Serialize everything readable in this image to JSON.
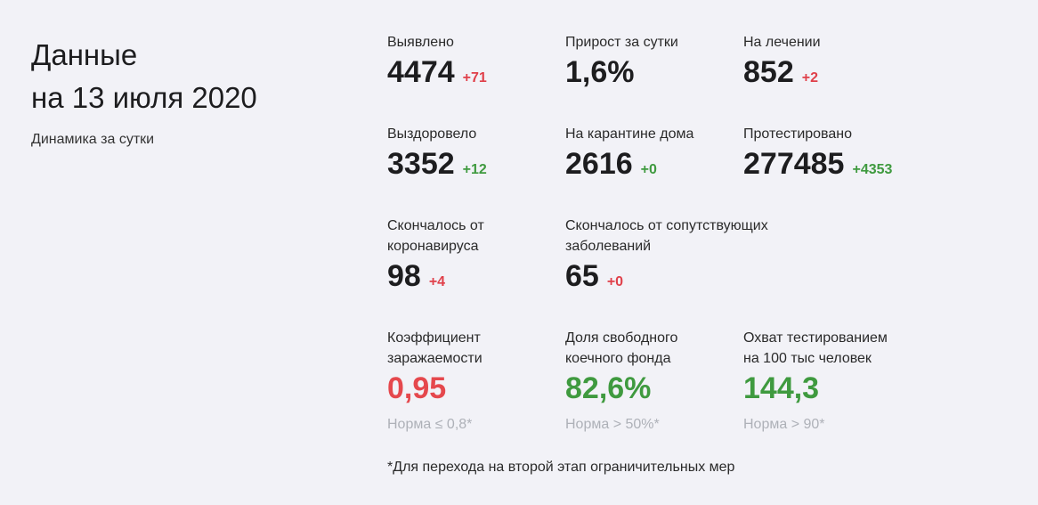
{
  "header": {
    "title_line1": "Данные",
    "title_line2": "на 13 июля 2020",
    "subtitle": "Динамика за сутки"
  },
  "stats": {
    "detected": {
      "label": "Выявлено",
      "value": "4474",
      "delta": "+71"
    },
    "daily_growth": {
      "label": "Прирост за сутки",
      "value": "1,6%"
    },
    "in_treatment": {
      "label": "На лечении",
      "value": "852",
      "delta": "+2"
    },
    "recovered": {
      "label": "Выздоровело",
      "value": "3352",
      "delta": "+12"
    },
    "home_quarantine": {
      "label": "На карантине дома",
      "value": "2616",
      "delta": "+0"
    },
    "tested": {
      "label": "Протестировано",
      "value": "277485",
      "delta": "+4353"
    },
    "died_covid": {
      "label_line1": "Скончалось от",
      "label_line2": "коронавируса",
      "value": "98",
      "delta": "+4"
    },
    "died_comorbid": {
      "label_line1": "Скончалось от сопутствующих",
      "label_line2": "заболеваний",
      "value": "65",
      "delta": "+0"
    }
  },
  "indicators": {
    "infection_rate": {
      "label_line1": "Коэффициент",
      "label_line2": "заражаемости",
      "value": "0,95",
      "norm": "Норма ≤ 0,8*"
    },
    "free_beds": {
      "label_line1": "Доля свободного",
      "label_line2": "коечного фонда",
      "value": "82,6%",
      "norm": "Норма > 50%*"
    },
    "testing_coverage": {
      "label_line1": "Охват тестированием",
      "label_line2": "на 100 тыс человек",
      "value": "144,3",
      "norm": "Норма > 90*"
    }
  },
  "footnote": "*Для перехода на второй этап ограничительных мер",
  "colors": {
    "background": "#f2f2f7",
    "negative": "#e5484d",
    "positive": "#3f9a3f",
    "norm_text": "#aeb1b8"
  }
}
